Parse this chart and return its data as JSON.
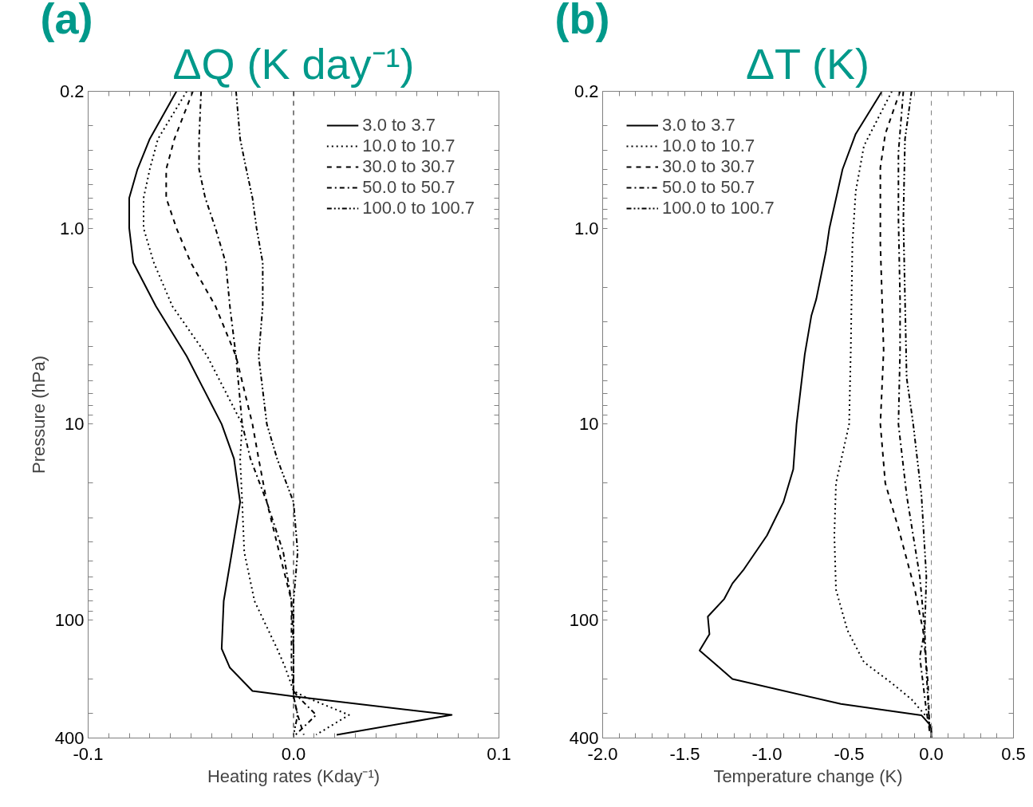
{
  "chart_data": [
    {
      "type": "line",
      "title": "ΔQ (K day⁻¹)",
      "xlabel": "Heating rates (Kday⁻¹)",
      "ylabel": "Pressure (hPa)",
      "annotations": [
        "(a)"
      ],
      "log": "y",
      "legend": "top right",
      "xlim": [
        -0.1,
        0.1
      ],
      "ylim": [
        400,
        0.2
      ],
      "xticks": [
        {
          "value": -0.1,
          "label": "-0.1"
        },
        {
          "value": -0.09,
          "label": null
        },
        {
          "value": -0.08,
          "label": null
        },
        {
          "value": -0.07,
          "label": null
        },
        {
          "value": -0.06,
          "label": null
        },
        {
          "value": -0.05,
          "label": null
        },
        {
          "value": -0.04,
          "label": null
        },
        {
          "value": -0.03,
          "label": null
        },
        {
          "value": -0.02,
          "label": null
        },
        {
          "value": -0.01,
          "label": null
        },
        {
          "value": 0,
          "label": "0.0"
        },
        {
          "value": 0.01,
          "label": null
        },
        {
          "value": 0.02,
          "label": null
        },
        {
          "value": 0.03,
          "label": null
        },
        {
          "value": 0.04,
          "label": null
        },
        {
          "value": 0.05,
          "label": null
        },
        {
          "value": 0.06,
          "label": null
        },
        {
          "value": 0.07,
          "label": null
        },
        {
          "value": 0.08,
          "label": null
        },
        {
          "value": 0.09,
          "label": null
        },
        {
          "value": 0.1,
          "label": "0.1"
        }
      ],
      "yticks": [
        0.2,
        {
          "value": 0.3,
          "label": null
        },
        {
          "value": 0.4,
          "label": null
        },
        {
          "value": 0.5,
          "label": null
        },
        {
          "value": 0.6,
          "label": null
        },
        {
          "value": 0.7,
          "label": null
        },
        {
          "value": 0.8,
          "label": null
        },
        {
          "value": 0.9,
          "label": null
        },
        {
          "value": 1,
          "label": "1.0"
        },
        {
          "value": 2,
          "label": null
        },
        {
          "value": 3,
          "label": null
        },
        {
          "value": 4,
          "label": null
        },
        {
          "value": 5,
          "label": null
        },
        {
          "value": 6,
          "label": null
        },
        {
          "value": 7,
          "label": null
        },
        {
          "value": 8,
          "label": null
        },
        {
          "value": 9,
          "label": null
        },
        10,
        {
          "value": 20,
          "label": null
        },
        {
          "value": 30,
          "label": null
        },
        {
          "value": 40,
          "label": null
        },
        {
          "value": 50,
          "label": null
        },
        {
          "value": 60,
          "label": null
        },
        {
          "value": 70,
          "label": null
        },
        {
          "value": 80,
          "label": null
        },
        {
          "value": 90,
          "label": null
        },
        100,
        {
          "value": 200,
          "label": null
        },
        {
          "value": 300,
          "label": null
        },
        400
      ],
      "ref_lines": [
        {
          "axis": "x",
          "value": 0,
          "color": "#000000",
          "line_style": "dashed"
        }
      ],
      "series": [
        {
          "name": "3.0 to 3.7",
          "color": "#000000",
          "line_style": "solid",
          "x": [
            -0.057,
            -0.07,
            -0.076,
            -0.08,
            -0.08,
            -0.078,
            -0.067,
            -0.052,
            -0.035,
            -0.029,
            -0.026,
            -0.03,
            -0.034,
            -0.035,
            -0.031,
            -0.02,
            0.0,
            0.077,
            0.021
          ],
          "values": [
            0.2,
            0.35,
            0.5,
            0.7,
            1,
            1.5,
            2.5,
            4.5,
            10,
            15,
            25,
            45,
            80,
            140,
            175,
            230,
            245,
            305,
            385
          ]
        },
        {
          "name": "10.0 to 10.7",
          "color": "#000000",
          "line_style": "dotted",
          "x": [
            -0.052,
            -0.066,
            -0.07,
            -0.073,
            -0.073,
            -0.068,
            -0.059,
            -0.042,
            -0.025,
            -0.026,
            -0.025,
            -0.024,
            -0.019,
            -0.008,
            -0.004,
            0.0,
            0.005,
            0.027,
            0.011
          ],
          "values": [
            0.2,
            0.35,
            0.5,
            0.7,
            1,
            1.5,
            2.5,
            4.5,
            10,
            15,
            25,
            45,
            80,
            140,
            175,
            230,
            245,
            305,
            385
          ]
        },
        {
          "name": "30.0 to 30.7",
          "color": "#000000",
          "line_style": "dashed",
          "x": [
            -0.049,
            -0.058,
            -0.062,
            -0.062,
            -0.057,
            -0.05,
            -0.038,
            -0.028,
            -0.02,
            -0.017,
            -0.013,
            -0.007,
            -0.001,
            0.0,
            0.0,
            0.0,
            0.0,
            0.002,
            0.005
          ],
          "values": [
            0.2,
            0.35,
            0.5,
            0.7,
            1,
            1.5,
            2.5,
            4.5,
            10,
            15,
            25,
            45,
            80,
            140,
            175,
            230,
            245,
            305,
            385
          ]
        },
        {
          "name": "50.0 to 50.7",
          "color": "#000000",
          "line_style": "dashdot",
          "x": [
            -0.045,
            -0.046,
            -0.046,
            -0.043,
            -0.038,
            -0.033,
            -0.031,
            -0.028,
            -0.025,
            -0.021,
            -0.013,
            -0.005,
            -0.001,
            -0.001,
            -0.001,
            0.0,
            0.002,
            0.011,
            0.001
          ],
          "values": [
            0.2,
            0.35,
            0.5,
            0.7,
            1,
            1.5,
            2.5,
            4.5,
            10,
            15,
            25,
            45,
            80,
            140,
            175,
            230,
            245,
            305,
            385
          ]
        },
        {
          "name": "100.0 to 100.7",
          "color": "#000000",
          "line_style": "dashdotdot",
          "x": [
            -0.028,
            -0.026,
            -0.023,
            -0.02,
            -0.018,
            -0.015,
            -0.015,
            -0.017,
            -0.013,
            -0.008,
            0.0,
            0.002,
            0.0,
            0.0,
            0.0,
            0.0,
            0.0,
            0.002,
            0.0
          ],
          "values": [
            0.2,
            0.35,
            0.5,
            0.7,
            1,
            1.5,
            2.5,
            4.5,
            10,
            15,
            25,
            45,
            80,
            140,
            175,
            230,
            245,
            305,
            385
          ]
        }
      ]
    },
    {
      "type": "line",
      "title": "ΔT (K)",
      "xlabel": "Temperature change (K)",
      "annotations": [
        "(b)"
      ],
      "log": "y",
      "legend": "top left",
      "xlim": [
        -2.0,
        0.5
      ],
      "ylim": [
        400,
        0.2
      ],
      "xticks": [
        {
          "value": -2.0,
          "label": "-2.0"
        },
        {
          "value": -1.9,
          "label": null
        },
        {
          "value": -1.8,
          "label": null
        },
        {
          "value": -1.7,
          "label": null
        },
        {
          "value": -1.6,
          "label": null
        },
        {
          "value": -1.5,
          "label": "-1.5"
        },
        {
          "value": -1.4,
          "label": null
        },
        {
          "value": -1.3,
          "label": null
        },
        {
          "value": -1.2,
          "label": null
        },
        {
          "value": -1.1,
          "label": null
        },
        {
          "value": -1.0,
          "label": "-1.0"
        },
        {
          "value": -0.9,
          "label": null
        },
        {
          "value": -0.8,
          "label": null
        },
        {
          "value": -0.7,
          "label": null
        },
        {
          "value": -0.6,
          "label": null
        },
        {
          "value": -0.5,
          "label": "-0.5"
        },
        {
          "value": -0.4,
          "label": null
        },
        {
          "value": -0.3,
          "label": null
        },
        {
          "value": -0.2,
          "label": null
        },
        {
          "value": -0.1,
          "label": null
        },
        {
          "value": 0,
          "label": "0.0"
        },
        {
          "value": 0.1,
          "label": null
        },
        {
          "value": 0.2,
          "label": null
        },
        {
          "value": 0.3,
          "label": null
        },
        {
          "value": 0.4,
          "label": null
        },
        0.5
      ],
      "yticks": [
        0.2,
        {
          "value": 0.3,
          "label": null
        },
        {
          "value": 0.4,
          "label": null
        },
        {
          "value": 0.5,
          "label": null
        },
        {
          "value": 0.6,
          "label": null
        },
        {
          "value": 0.7,
          "label": null
        },
        {
          "value": 0.8,
          "label": null
        },
        {
          "value": 0.9,
          "label": null
        },
        {
          "value": 1,
          "label": "1.0"
        },
        {
          "value": 2,
          "label": null
        },
        {
          "value": 3,
          "label": null
        },
        {
          "value": 4,
          "label": null
        },
        {
          "value": 5,
          "label": null
        },
        {
          "value": 6,
          "label": null
        },
        {
          "value": 7,
          "label": null
        },
        {
          "value": 8,
          "label": null
        },
        {
          "value": 9,
          "label": null
        },
        10,
        {
          "value": 20,
          "label": null
        },
        {
          "value": 30,
          "label": null
        },
        {
          "value": 40,
          "label": null
        },
        {
          "value": 50,
          "label": null
        },
        {
          "value": 60,
          "label": null
        },
        {
          "value": 70,
          "label": null
        },
        {
          "value": 80,
          "label": null
        },
        {
          "value": 90,
          "label": null
        },
        100,
        {
          "value": 200,
          "label": null
        },
        {
          "value": 300,
          "label": null
        },
        400
      ],
      "ref_lines": [
        {
          "axis": "x",
          "value": 0,
          "color": "#808080",
          "line_style": "dashed"
        }
      ],
      "series": [
        {
          "name": "3.0 to 3.7",
          "color": "#000000",
          "line_style": "solid",
          "x": [
            -0.3,
            -0.46,
            -0.54,
            -0.62,
            -0.64,
            -0.7,
            -0.73,
            -0.77,
            -0.82,
            -0.84,
            -0.9,
            -1.0,
            -1.14,
            -1.21,
            -1.26,
            -1.36,
            -1.35,
            -1.41,
            -1.31,
            -1.21,
            -0.55,
            -0.06,
            0.0,
            0.0
          ],
          "values": [
            0.2,
            0.33,
            0.5,
            1,
            1.3,
            2.3,
            2.8,
            4.4,
            10,
            17,
            25,
            37,
            55,
            65,
            78,
            96,
            118,
            143,
            169,
            200,
            268,
            306,
            349,
            400
          ]
        },
        {
          "name": "10.0 to 10.7",
          "color": "#000000",
          "line_style": "dotted",
          "x": [
            -0.24,
            -0.41,
            -0.46,
            -0.48,
            -0.49,
            -0.5,
            -0.58,
            -0.59,
            -0.58,
            -0.51,
            -0.41,
            -0.24,
            -0.12,
            -0.02,
            0.0,
            0.0
          ],
          "values": [
            0.2,
            0.38,
            0.65,
            1.2,
            4.2,
            10,
            20,
            37,
            70,
            113,
            164,
            210,
            254,
            318,
            369,
            400
          ]
        },
        {
          "name": "30.0 to 30.7",
          "color": "#000000",
          "line_style": "dashed",
          "x": [
            -0.19,
            -0.28,
            -0.31,
            -0.31,
            -0.29,
            -0.31,
            -0.28,
            -0.2,
            -0.1,
            -0.05,
            -0.02,
            -0.01
          ],
          "values": [
            0.2,
            0.33,
            0.49,
            1.2,
            4.2,
            10,
            20,
            34,
            70,
            113,
            210,
            369
          ]
        },
        {
          "name": "50.0 to 50.7",
          "color": "#000000",
          "line_style": "dashdot",
          "x": [
            -0.17,
            -0.2,
            -0.2,
            -0.19,
            -0.19,
            -0.2,
            -0.15,
            -0.07,
            -0.04,
            -0.07,
            -0.03,
            -0.01
          ],
          "values": [
            0.2,
            0.41,
            0.89,
            2.3,
            4.2,
            10,
            23,
            60,
            113,
            154,
            290,
            369
          ]
        },
        {
          "name": "100.0 to 100.7",
          "color": "#000000",
          "line_style": "dashdotdot",
          "x": [
            -0.12,
            -0.16,
            -0.17,
            -0.16,
            -0.15,
            -0.11,
            -0.06,
            -0.03,
            -0.04,
            -0.03,
            -0.01
          ],
          "values": [
            0.2,
            0.35,
            0.89,
            2.3,
            5.8,
            10,
            23,
            60,
            113,
            181,
            369
          ]
        }
      ]
    }
  ]
}
